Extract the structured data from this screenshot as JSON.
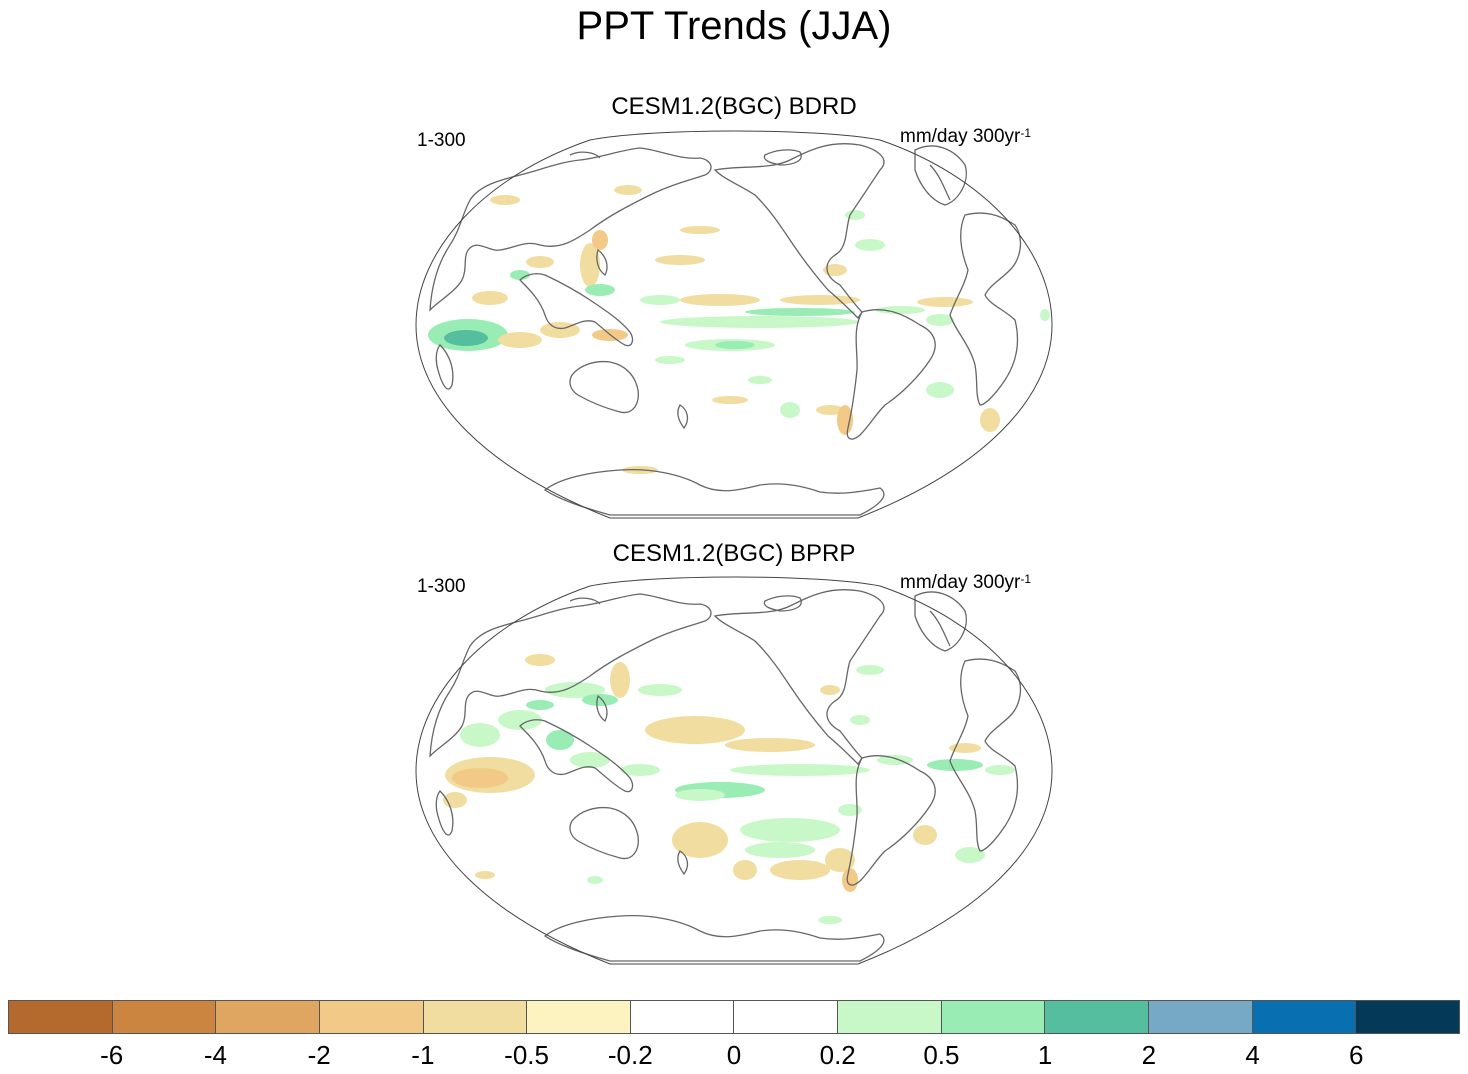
{
  "title": "PPT Trends (JJA)",
  "panels": [
    {
      "title": "CESM1.2(BGC) BDRD",
      "left_label": "1-300",
      "right_label_main": "mm/day 300yr",
      "right_label_sup": "-1"
    },
    {
      "title": "CESM1.2(BGC) BPRP",
      "left_label": "1-300",
      "right_label_main": "mm/day 300yr",
      "right_label_sup": "-1"
    }
  ],
  "colorbar": {
    "colors": [
      "#b36a2c",
      "#cc8541",
      "#dfa661",
      "#f3c987",
      "#f1dd9f",
      "#fcf3c0",
      "#ffffff",
      "#ffffff",
      "#c8f8c8",
      "#98ecb4",
      "#54be9e",
      "#75a9c6",
      "#0870b0",
      "#053958"
    ],
    "labels": [
      "-6",
      "-4",
      "-2",
      "-1",
      "-0.5",
      "-0.2",
      "0",
      "0.2",
      "0.5",
      "1",
      "2",
      "4",
      "6"
    ]
  },
  "map_colors": {
    "coast": "#666666",
    "brown_light": "#f1dd9f",
    "brown_mid": "#f3c987",
    "green_light": "#c8f8c8",
    "green_mid": "#98ecb4",
    "green_dark": "#54be9e"
  }
}
